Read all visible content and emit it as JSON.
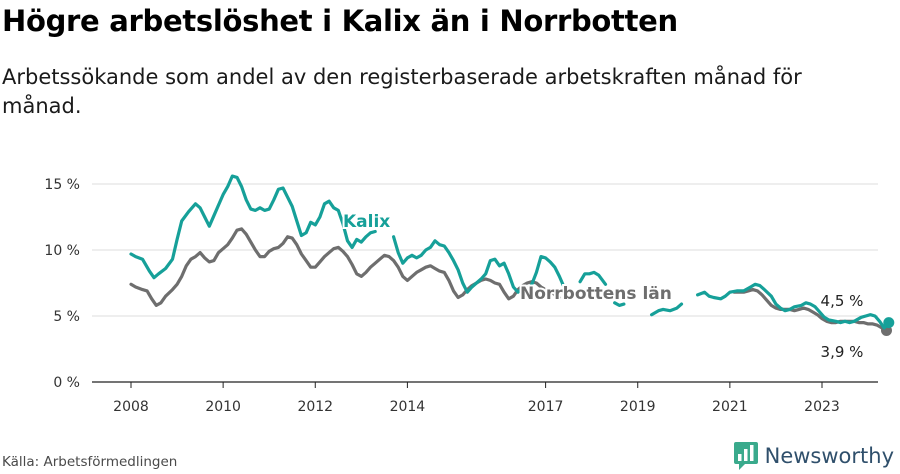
{
  "header": {
    "title": "Högre arbetslöshet i Kalix än i Norrbotten",
    "subtitle": "Arbetssökande som andel av den registerbaserade arbetskraften månad för månad."
  },
  "footer": {
    "source": "Källa: Arbetsförmedlingen",
    "brand": "Newsworthy"
  },
  "colors": {
    "kalix": "#16a099",
    "norrbotten": "#6e6e6e",
    "grid": "#dddddd",
    "axis": "#222222",
    "brand": "#2f4f6b",
    "brand_accent": "#3aaa8c"
  },
  "chart_data": {
    "type": "line",
    "title": "Högre arbetslöshet i Kalix än i Norrbotten",
    "xlabel": "",
    "ylabel": "",
    "ylim": [
      0,
      16
    ],
    "yticks": [
      0,
      5,
      10,
      15
    ],
    "ytick_labels": [
      "0 %",
      "5 %",
      "10 %",
      "15 %"
    ],
    "xlim": [
      2007.6,
      2024.2
    ],
    "xticks": [
      2008,
      2010,
      2012,
      2014,
      2017,
      2019,
      2021,
      2023
    ],
    "xtick_labels": [
      "2008",
      "2010",
      "2012",
      "2014",
      "2017",
      "2019",
      "2021",
      "2023"
    ],
    "grid": true,
    "series": [
      {
        "name": "Kalix",
        "label": "Kalix",
        "color": "#16a099",
        "end_label": "4,5 %",
        "points": [
          [
            2008.0,
            9.7
          ],
          [
            2008.1,
            9.5
          ],
          [
            2008.25,
            9.3
          ],
          [
            2008.4,
            8.4
          ],
          [
            2008.5,
            7.9
          ],
          [
            2008.6,
            8.2
          ],
          [
            2008.75,
            8.6
          ],
          [
            2008.9,
            9.3
          ],
          [
            2009.0,
            10.8
          ],
          [
            2009.1,
            12.2
          ],
          [
            2009.25,
            12.9
          ],
          [
            2009.4,
            13.5
          ],
          [
            2009.5,
            13.2
          ],
          [
            2009.6,
            12.5
          ],
          [
            2009.7,
            11.8
          ],
          [
            2009.8,
            12.6
          ],
          [
            2009.9,
            13.4
          ],
          [
            2010.0,
            14.2
          ],
          [
            2010.1,
            14.8
          ],
          [
            2010.2,
            15.6
          ],
          [
            2010.3,
            15.5
          ],
          [
            2010.4,
            14.8
          ],
          [
            2010.5,
            13.8
          ],
          [
            2010.6,
            13.1
          ],
          [
            2010.7,
            13.0
          ],
          [
            2010.8,
            13.2
          ],
          [
            2010.9,
            13.0
          ],
          [
            2011.0,
            13.1
          ],
          [
            2011.1,
            13.8
          ],
          [
            2011.2,
            14.6
          ],
          [
            2011.3,
            14.7
          ],
          [
            2011.4,
            14.0
          ],
          [
            2011.5,
            13.3
          ],
          [
            2011.6,
            12.2
          ],
          [
            2011.7,
            11.1
          ],
          [
            2011.8,
            11.3
          ],
          [
            2011.9,
            12.1
          ],
          [
            2012.0,
            11.9
          ],
          [
            2012.1,
            12.5
          ],
          [
            2012.2,
            13.5
          ],
          [
            2012.3,
            13.7
          ],
          [
            2012.4,
            13.2
          ],
          [
            2012.5,
            13.0
          ],
          [
            2012.6,
            12.0
          ],
          [
            2012.7,
            10.7
          ],
          [
            2012.8,
            10.2
          ],
          [
            2012.9,
            10.8
          ],
          [
            2013.0,
            10.6
          ],
          [
            2013.1,
            11.0
          ],
          [
            2013.2,
            11.3
          ],
          [
            2013.3,
            11.4
          ],
          null,
          [
            2013.7,
            11.0
          ],
          [
            2013.8,
            9.8
          ],
          [
            2013.9,
            9.0
          ],
          [
            2014.0,
            9.4
          ],
          [
            2014.1,
            9.6
          ],
          [
            2014.2,
            9.4
          ],
          [
            2014.3,
            9.6
          ],
          [
            2014.4,
            10.0
          ],
          [
            2014.5,
            10.2
          ],
          [
            2014.6,
            10.7
          ],
          [
            2014.7,
            10.4
          ],
          [
            2014.8,
            10.3
          ],
          [
            2014.9,
            9.8
          ],
          [
            2015.0,
            9.2
          ],
          [
            2015.1,
            8.5
          ],
          [
            2015.2,
            7.5
          ],
          [
            2015.3,
            6.8
          ],
          [
            2015.4,
            7.2
          ],
          [
            2015.5,
            7.5
          ],
          [
            2015.6,
            7.8
          ],
          [
            2015.7,
            8.2
          ],
          [
            2015.8,
            9.2
          ],
          [
            2015.9,
            9.3
          ],
          [
            2016.0,
            8.8
          ],
          [
            2016.1,
            9.0
          ],
          [
            2016.2,
            8.2
          ],
          [
            2016.3,
            7.2
          ],
          [
            2016.4,
            6.8
          ],
          [
            2016.5,
            7.1
          ],
          [
            2016.6,
            7.0
          ],
          [
            2016.7,
            7.4
          ],
          [
            2016.8,
            8.3
          ],
          [
            2016.9,
            9.5
          ],
          [
            2017.0,
            9.4
          ],
          [
            2017.1,
            9.1
          ],
          [
            2017.2,
            8.7
          ],
          [
            2017.3,
            8.0
          ],
          [
            2017.4,
            7.2
          ],
          null,
          [
            2017.75,
            7.6
          ],
          [
            2017.85,
            8.2
          ],
          [
            2017.95,
            8.2
          ],
          [
            2018.05,
            8.3
          ],
          [
            2018.15,
            8.1
          ],
          [
            2018.3,
            7.4
          ],
          null,
          [
            2018.5,
            6.0
          ],
          [
            2018.6,
            5.8
          ],
          [
            2018.7,
            5.9
          ],
          null,
          [
            2019.3,
            5.1
          ],
          [
            2019.45,
            5.4
          ],
          [
            2019.55,
            5.5
          ],
          [
            2019.7,
            5.4
          ],
          [
            2019.85,
            5.6
          ],
          [
            2019.95,
            5.9
          ],
          null,
          [
            2020.3,
            6.6
          ],
          [
            2020.45,
            6.8
          ],
          [
            2020.55,
            6.5
          ],
          [
            2020.65,
            6.4
          ],
          [
            2020.8,
            6.3
          ],
          [
            2020.9,
            6.5
          ],
          [
            2021.0,
            6.8
          ],
          [
            2021.15,
            6.9
          ],
          [
            2021.3,
            6.9
          ],
          [
            2021.45,
            7.2
          ],
          [
            2021.55,
            7.4
          ],
          [
            2021.65,
            7.3
          ],
          [
            2021.75,
            7.0
          ],
          [
            2021.9,
            6.5
          ],
          [
            2022.0,
            5.9
          ],
          [
            2022.1,
            5.6
          ],
          [
            2022.2,
            5.4
          ],
          [
            2022.3,
            5.5
          ],
          [
            2022.4,
            5.7
          ],
          [
            2022.55,
            5.8
          ],
          [
            2022.65,
            6.0
          ],
          [
            2022.75,
            5.9
          ],
          [
            2022.85,
            5.7
          ],
          [
            2022.95,
            5.3
          ],
          [
            2023.05,
            4.9
          ],
          [
            2023.15,
            4.7
          ],
          [
            2023.3,
            4.6
          ],
          [
            2023.4,
            4.5
          ],
          [
            2023.5,
            4.6
          ],
          [
            2023.6,
            4.5
          ],
          [
            2023.7,
            4.6
          ],
          [
            2023.85,
            4.9
          ],
          [
            2023.95,
            5.0
          ],
          [
            2024.05,
            5.1
          ],
          [
            2024.15,
            5.0
          ],
          [
            2024.25,
            4.6
          ],
          [
            2024.35,
            4.1
          ],
          [
            2024.45,
            4.5
          ]
        ]
      },
      {
        "name": "Norrbottens län",
        "label": "Norrbottens län",
        "color": "#6e6e6e",
        "end_label": "3,9 %",
        "points": [
          [
            2008.0,
            7.4
          ],
          [
            2008.1,
            7.2
          ],
          [
            2008.25,
            7.0
          ],
          [
            2008.35,
            6.9
          ],
          [
            2008.45,
            6.3
          ],
          [
            2008.55,
            5.8
          ],
          [
            2008.65,
            6.0
          ],
          [
            2008.75,
            6.5
          ],
          [
            2008.9,
            7.0
          ],
          [
            2009.0,
            7.4
          ],
          [
            2009.1,
            8.0
          ],
          [
            2009.2,
            8.8
          ],
          [
            2009.3,
            9.3
          ],
          [
            2009.4,
            9.5
          ],
          [
            2009.5,
            9.8
          ],
          [
            2009.6,
            9.4
          ],
          [
            2009.7,
            9.1
          ],
          [
            2009.8,
            9.2
          ],
          [
            2009.9,
            9.8
          ],
          [
            2010.0,
            10.1
          ],
          [
            2010.1,
            10.4
          ],
          [
            2010.2,
            10.9
          ],
          [
            2010.3,
            11.5
          ],
          [
            2010.4,
            11.6
          ],
          [
            2010.5,
            11.2
          ],
          [
            2010.6,
            10.6
          ],
          [
            2010.7,
            10.0
          ],
          [
            2010.8,
            9.5
          ],
          [
            2010.9,
            9.5
          ],
          [
            2011.0,
            9.9
          ],
          [
            2011.1,
            10.1
          ],
          [
            2011.2,
            10.2
          ],
          [
            2011.3,
            10.5
          ],
          [
            2011.4,
            11.0
          ],
          [
            2011.5,
            10.9
          ],
          [
            2011.6,
            10.4
          ],
          [
            2011.7,
            9.7
          ],
          [
            2011.8,
            9.2
          ],
          [
            2011.9,
            8.7
          ],
          [
            2012.0,
            8.7
          ],
          [
            2012.1,
            9.1
          ],
          [
            2012.2,
            9.5
          ],
          [
            2012.3,
            9.8
          ],
          [
            2012.4,
            10.1
          ],
          [
            2012.5,
            10.2
          ],
          [
            2012.6,
            9.9
          ],
          [
            2012.7,
            9.5
          ],
          [
            2012.8,
            8.9
          ],
          [
            2012.9,
            8.2
          ],
          [
            2013.0,
            8.0
          ],
          [
            2013.1,
            8.3
          ],
          [
            2013.2,
            8.7
          ],
          [
            2013.3,
            9.0
          ],
          [
            2013.4,
            9.3
          ],
          [
            2013.5,
            9.6
          ],
          [
            2013.6,
            9.5
          ],
          [
            2013.7,
            9.2
          ],
          [
            2013.8,
            8.7
          ],
          [
            2013.9,
            8.0
          ],
          [
            2014.0,
            7.7
          ],
          [
            2014.1,
            8.0
          ],
          [
            2014.2,
            8.3
          ],
          [
            2014.3,
            8.5
          ],
          [
            2014.4,
            8.7
          ],
          [
            2014.5,
            8.8
          ],
          [
            2014.6,
            8.6
          ],
          [
            2014.7,
            8.4
          ],
          [
            2014.8,
            8.3
          ],
          [
            2014.9,
            7.7
          ],
          [
            2015.0,
            6.9
          ],
          [
            2015.1,
            6.4
          ],
          [
            2015.2,
            6.6
          ],
          [
            2015.3,
            7.0
          ],
          [
            2015.4,
            7.3
          ],
          [
            2015.5,
            7.5
          ],
          [
            2015.6,
            7.7
          ],
          [
            2015.7,
            7.8
          ],
          [
            2015.8,
            7.7
          ],
          [
            2015.9,
            7.5
          ],
          [
            2016.0,
            7.4
          ],
          [
            2016.1,
            6.8
          ],
          [
            2016.2,
            6.3
          ],
          [
            2016.3,
            6.5
          ],
          [
            2016.4,
            7.0
          ],
          [
            2016.5,
            7.3
          ],
          [
            2016.6,
            7.5
          ],
          [
            2016.7,
            7.6
          ],
          [
            2016.8,
            7.5
          ],
          [
            2016.9,
            7.2
          ],
          [
            2017.0,
            7.0
          ],
          [
            2017.1,
            7.0
          ],
          [
            2017.2,
            6.6
          ],
          [
            2017.3,
            6.4
          ],
          null,
          [
            2021.1,
            6.8
          ],
          [
            2021.2,
            6.8
          ],
          [
            2021.3,
            6.8
          ],
          [
            2021.4,
            6.9
          ],
          [
            2021.5,
            7.0
          ],
          [
            2021.6,
            6.9
          ],
          [
            2021.7,
            6.6
          ],
          [
            2021.8,
            6.2
          ],
          [
            2021.9,
            5.8
          ],
          [
            2022.0,
            5.6
          ],
          [
            2022.1,
            5.5
          ],
          [
            2022.2,
            5.5
          ],
          [
            2022.3,
            5.5
          ],
          [
            2022.4,
            5.4
          ],
          [
            2022.5,
            5.5
          ],
          [
            2022.6,
            5.6
          ],
          [
            2022.7,
            5.5
          ],
          [
            2022.8,
            5.3
          ],
          [
            2022.9,
            5.1
          ],
          [
            2023.0,
            4.8
          ],
          [
            2023.1,
            4.6
          ],
          [
            2023.2,
            4.5
          ],
          [
            2023.3,
            4.5
          ],
          [
            2023.4,
            4.6
          ],
          [
            2023.5,
            4.6
          ],
          [
            2023.6,
            4.6
          ],
          [
            2023.7,
            4.6
          ],
          [
            2023.8,
            4.5
          ],
          [
            2023.9,
            4.5
          ],
          [
            2024.0,
            4.4
          ],
          [
            2024.1,
            4.4
          ],
          [
            2024.2,
            4.3
          ],
          [
            2024.3,
            4.1
          ],
          [
            2024.4,
            3.9
          ]
        ]
      }
    ],
    "annotations": {
      "kalix_label": "Kalix",
      "norrbotten_label": "Norrbottens län",
      "kalix_end": "4,5 %",
      "norrbotten_end": "3,9 %"
    }
  }
}
